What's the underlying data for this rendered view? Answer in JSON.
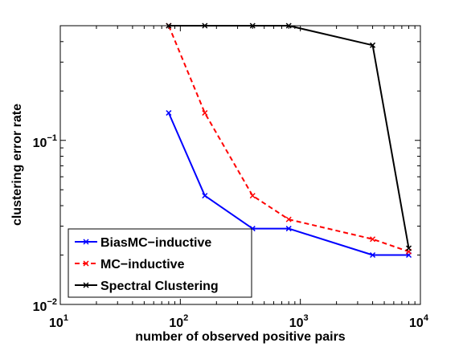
{
  "chart_data": {
    "type": "line",
    "xlabel": "number of observed positive pairs",
    "ylabel": "clustering error rate",
    "xscale": "log",
    "yscale": "log",
    "xlim": [
      10,
      10000
    ],
    "ylim": [
      0.01,
      0.5
    ],
    "xticks": [
      {
        "value": 10,
        "base": "10",
        "exp": "1"
      },
      {
        "value": 100,
        "base": "10",
        "exp": "2"
      },
      {
        "value": 1000,
        "base": "10",
        "exp": "3"
      },
      {
        "value": 10000,
        "base": "10",
        "exp": "4"
      }
    ],
    "yticks": [
      {
        "value": 0.01,
        "base": "10",
        "exp": "−2"
      },
      {
        "value": 0.1,
        "base": "10",
        "exp": "−1"
      }
    ],
    "grid": false,
    "legend_position": "bottom-left",
    "series": [
      {
        "name": "BiasMC−inductive",
        "color": "#0000ff",
        "dash": "solid",
        "marker": "x",
        "x": [
          80,
          160,
          400,
          800,
          4000,
          8000
        ],
        "y": [
          0.147,
          0.046,
          0.029,
          0.029,
          0.02,
          0.02
        ]
      },
      {
        "name": "MC−inductive",
        "color": "#ff0000",
        "dash": "dashed",
        "marker": "x",
        "x": [
          80,
          160,
          400,
          800,
          4000,
          8000
        ],
        "y": [
          0.5,
          0.147,
          0.046,
          0.033,
          0.025,
          0.021
        ]
      },
      {
        "name": "Spectral Clustering",
        "color": "#000000",
        "dash": "solid",
        "marker": "x",
        "x": [
          80,
          160,
          400,
          800,
          4000,
          8000
        ],
        "y": [
          0.5,
          0.5,
          0.5,
          0.5,
          0.38,
          0.022
        ]
      }
    ]
  }
}
